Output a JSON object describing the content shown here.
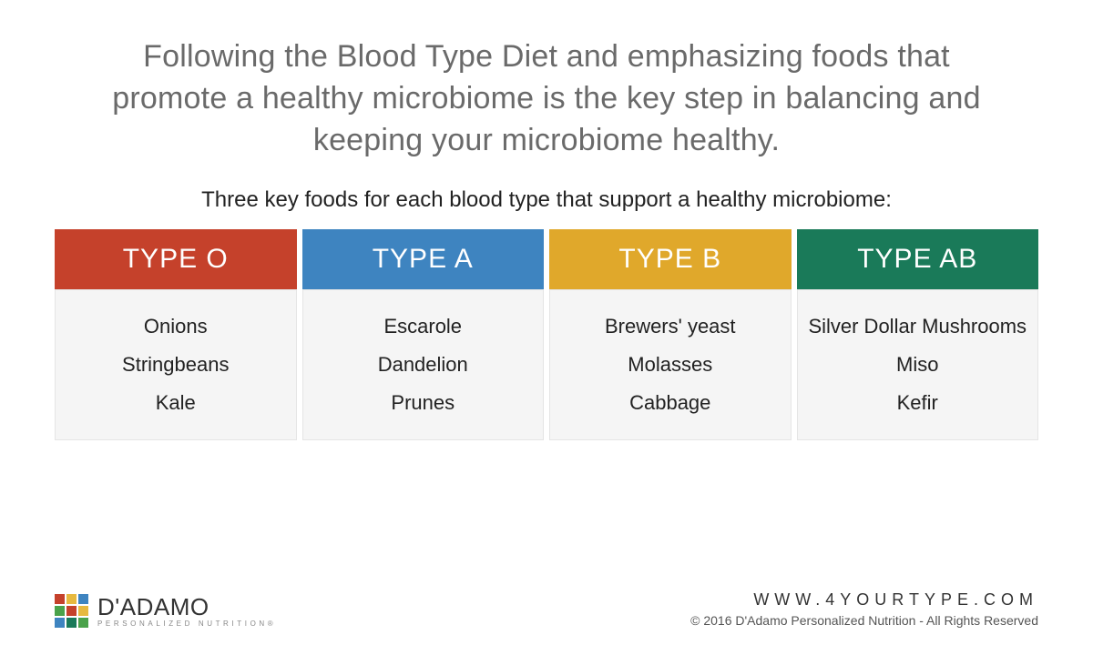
{
  "intro": "Following the Blood Type Diet and emphasizing foods that promote a healthy microbiome is the key step in balancing and keeping your microbiome healthy.",
  "subhead": "Three key foods for each blood type that support a healthy microbiome:",
  "table": {
    "type": "infographic",
    "columns": [
      {
        "label": "TYPE O",
        "color": "#c5412b",
        "foods": [
          "Onions",
          "Stringbeans",
          "Kale"
        ]
      },
      {
        "label": "TYPE A",
        "color": "#3e84c0",
        "foods": [
          "Escarole",
          "Dandelion",
          "Prunes"
        ]
      },
      {
        "label": "TYPE B",
        "color": "#e0a京2b",
        "foods": [
          "Brewers' yeast",
          "Molasses",
          "Cabbage"
        ]
      },
      {
        "label": "TYPE AB",
        "color": "#1a7a59",
        "foods": [
          "Silver Dollar Mushrooms",
          "Miso",
          "Kefir"
        ]
      }
    ],
    "body_bg": "#f5f5f5",
    "body_border": "#e5e5e5",
    "head_text_color": "#ffffff",
    "head_fontsize": 30,
    "food_fontsize": 22,
    "food_color": "#222222",
    "gap": 6
  },
  "logo": {
    "main": "D'ADAMO",
    "sub": "PERSONALIZED NUTRITION®",
    "grid_colors": [
      "#c5412b",
      "#e7b93f",
      "#3e84c0",
      "#4aa24a",
      "#c5412b",
      "#e7b93f",
      "#3e84c0",
      "#1a7a59",
      "#4aa24a"
    ]
  },
  "footer": {
    "url": "WWW.4YOURTYPE.COM",
    "copyright": "© 2016 D'Adamo Personalized Nutrition - All Rights Reserved"
  },
  "styling": {
    "page_bg": "#ffffff",
    "intro_color": "#6a6a6a",
    "intro_fontsize": 34,
    "subhead_color": "#222222",
    "subhead_fontsize": 24,
    "url_letter_spacing": 6
  }
}
